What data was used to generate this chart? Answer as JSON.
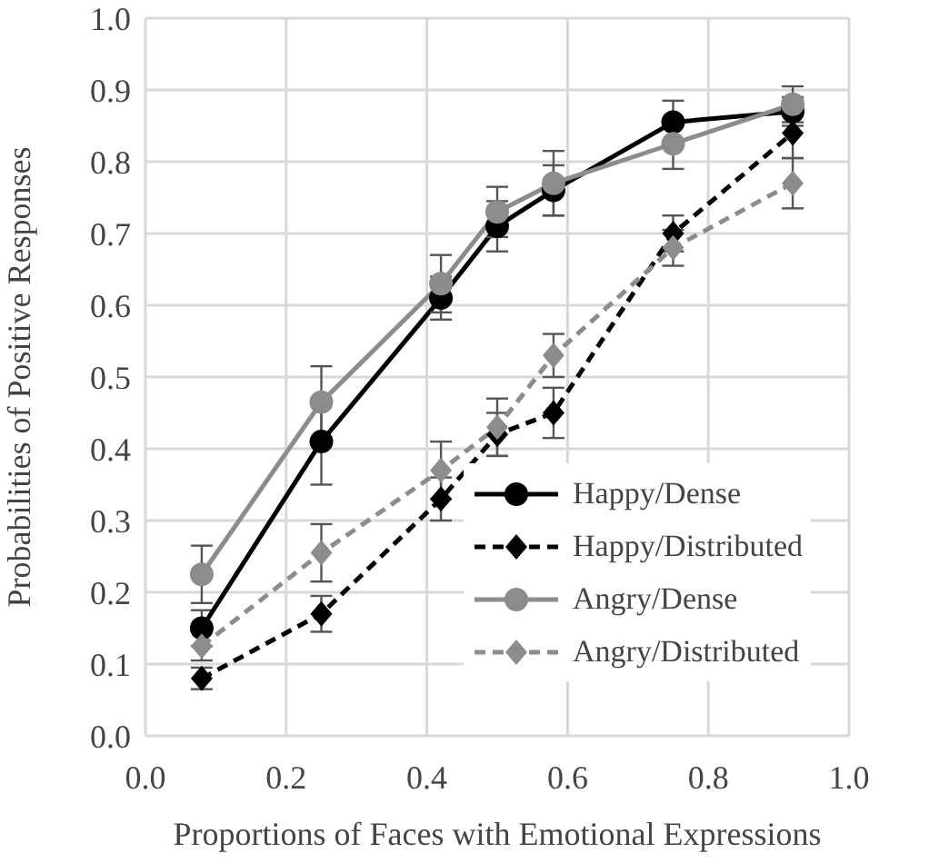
{
  "chart_data": {
    "type": "line",
    "xlabel": "Proportions of Faces with Emotional Expressions",
    "ylabel": "Probabilities of Positive Responses",
    "xlim": [
      0,
      1
    ],
    "xticks": [
      {
        "value": 0,
        "label": "0.0"
      },
      0.2,
      0.4,
      0.6,
      0.8,
      {
        "value": 1,
        "label": "1.0"
      }
    ],
    "ylim": [
      0,
      1
    ],
    "yticks": [
      {
        "value": 0,
        "label": "0.0"
      },
      0.1,
      0.2,
      0.3,
      0.4,
      0.5,
      0.6,
      0.7,
      0.8,
      0.9,
      {
        "value": 1,
        "label": "1.0"
      }
    ],
    "grid": true,
    "legend": "bottom right",
    "x": [
      0.08,
      0.25,
      0.42,
      0.5,
      0.58,
      0.75,
      0.92
    ],
    "series": [
      {
        "name": "Happy/Dense",
        "color": "#000000",
        "marker": "circle",
        "line_style": "solid",
        "values": [
          0.15,
          0.41,
          0.61,
          0.71,
          0.76,
          0.855,
          0.87
        ],
        "errors": [
          0.025,
          0.06,
          0.03,
          0.035,
          0.035,
          0.03,
          0.02
        ]
      },
      {
        "name": "Happy/Distributed",
        "color": "#000000",
        "marker": "diamond",
        "line_style": "dashed",
        "values": [
          0.08,
          0.17,
          0.33,
          0.42,
          0.45,
          0.7,
          0.84
        ],
        "errors": [
          0.015,
          0.025,
          0.03,
          0.03,
          0.035,
          0.025,
          0.035
        ]
      },
      {
        "name": "Angry/Dense",
        "color": "#8c8c8c",
        "marker": "circle",
        "line_style": "solid",
        "values": [
          0.225,
          0.465,
          0.63,
          0.73,
          0.77,
          0.825,
          0.88
        ],
        "errors": [
          0.04,
          0.05,
          0.04,
          0.035,
          0.045,
          0.035,
          0.025
        ]
      },
      {
        "name": "Angry/Distributed",
        "color": "#8c8c8c",
        "marker": "diamond",
        "line_style": "dashed",
        "values": [
          0.125,
          0.255,
          0.37,
          0.43,
          0.53,
          0.68,
          0.77
        ],
        "errors": [
          0.02,
          0.04,
          0.04,
          0.04,
          0.03,
          0.025,
          0.035
        ]
      }
    ]
  }
}
